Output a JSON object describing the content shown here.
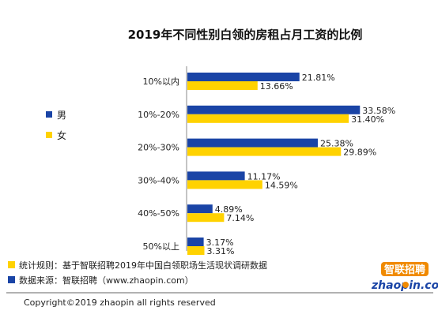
{
  "chart_data": {
    "type": "bar",
    "orientation": "horizontal",
    "title": "2019年不同性别白领的房租占月工资的比例",
    "categories": [
      "10%以内",
      "10%-20%",
      "20%-30%",
      "30%-40%",
      "40%-50%",
      "50%以上"
    ],
    "series": [
      {
        "name": "男",
        "values": [
          21.81,
          33.58,
          25.38,
          11.17,
          4.89,
          3.17
        ],
        "labels": [
          "21.81%",
          "33.58%",
          "25.38%",
          "11.17%",
          "4.89%",
          "3.17%"
        ]
      },
      {
        "name": "女",
        "values": [
          13.66,
          31.4,
          29.89,
          14.59,
          7.14,
          3.31
        ],
        "labels": [
          "13.66%",
          "31.40%",
          "29.89%",
          "14.59%",
          "7.14%",
          "3.31%"
        ]
      }
    ],
    "xlim": [
      0,
      35
    ],
    "grid": false,
    "legend_position": "left"
  },
  "colors": {
    "male": "#1a44a6",
    "female": "#ffd200",
    "axis": "#888888",
    "logo_blue": "#1a44a6",
    "logo_orange": "#f08a00"
  },
  "footer": {
    "note1": "统计规则：基于智联招聘2019年中国白领职场生活现状调研数据",
    "note2": "数据来源：智联招聘（www.zhaopin.com）",
    "copyright": "Copyright©2019 zhaopin all rights reserved"
  },
  "logo": {
    "cn": "智联招聘",
    "en_a": "zhaopin",
    "en_b": ".com"
  }
}
